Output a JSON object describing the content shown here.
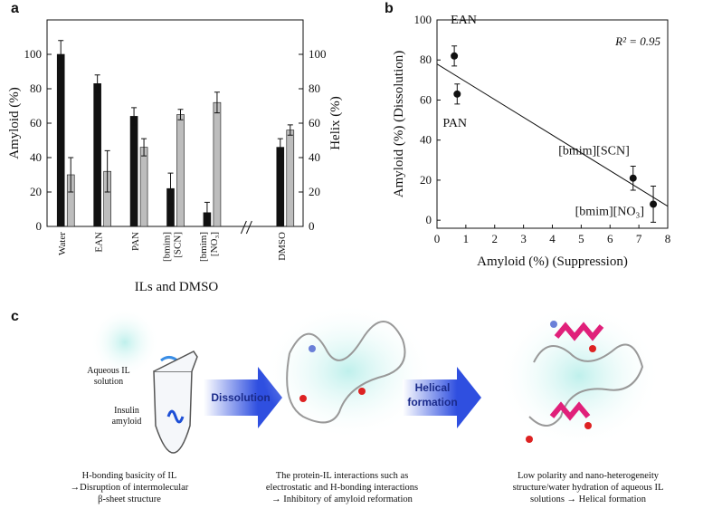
{
  "chart_data": [
    {
      "type": "bar",
      "panel": "a",
      "xlabel": "ILs and DMSO",
      "ylabel": "Amyloid (%)",
      "y2label": "Helix (%)",
      "categories": [
        "Water",
        "EAN",
        "PAN",
        "[bmim][SCN]",
        "[bmim][NO₃]",
        null,
        "DMSO"
      ],
      "series": [
        {
          "color": "#111111",
          "values": [
            100,
            83,
            64,
            22,
            8,
            null,
            46
          ],
          "errors": [
            8,
            5,
            5,
            9,
            6,
            null,
            5
          ]
        },
        {
          "color": "#bdbdbd",
          "axis": "y2",
          "values": [
            30,
            32,
            46,
            65,
            72,
            null,
            56
          ],
          "errors": [
            10,
            12,
            5,
            3,
            6,
            null,
            3
          ]
        }
      ],
      "ylim": [
        0,
        120
      ],
      "yticks": [
        0,
        20,
        40,
        60,
        80,
        100
      ],
      "y2lim": [
        0,
        120
      ],
      "y2ticks": [
        0,
        20,
        40,
        60,
        80,
        100
      ]
    },
    {
      "type": "scatter",
      "panel": "b",
      "xlabel": "Amyloid (%) (Suppression)",
      "ylabel": "Amyloid (%) (Dissolution)",
      "annotation": "R² = 0.95",
      "labels": [
        "EAN",
        "PAN",
        "[bmim][SCN]",
        "[bmim][NO₃]"
      ],
      "x": [
        0.6,
        0.7,
        6.8,
        7.5
      ],
      "values": [
        82,
        63,
        21,
        8
      ],
      "errors": [
        5,
        5,
        6,
        9
      ],
      "color": "#111111",
      "fit": {
        "x": [
          0,
          8
        ],
        "values": [
          78,
          7
        ]
      },
      "xlim": [
        0,
        8
      ],
      "xticks": [
        0,
        1,
        2,
        3,
        4,
        5,
        6,
        7,
        8
      ],
      "ylim": [
        -4,
        100
      ],
      "yticks": [
        0,
        20,
        40,
        60,
        80,
        100
      ]
    }
  ],
  "diagram": {
    "panel": "c",
    "aqueous_label": [
      "Aqueous IL",
      "solution"
    ],
    "amyloid_label": [
      "Insulin",
      "amyloid"
    ],
    "arrows": [
      [
        "Dissolution"
      ],
      [
        "Helical",
        "formation"
      ]
    ],
    "captions": [
      [
        "H-bonding basicity of IL",
        "→Disruption of intermolecular",
        "β-sheet structure"
      ],
      [
        "The protein-IL interactions such as",
        "electrostatic and H-bonding interactions",
        "→ Inhibitory of amyloid reformation"
      ],
      [
        "Low polarity and nano-heterogeneity",
        "structure/water hydration of aqueous IL",
        "solutions → Helical formation"
      ]
    ]
  }
}
